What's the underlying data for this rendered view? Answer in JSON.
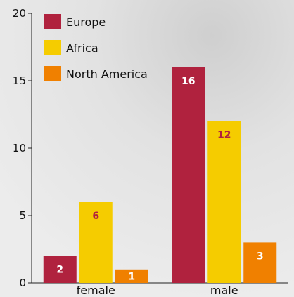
{
  "chart_data": {
    "type": "bar",
    "categories": [
      "female",
      "male"
    ],
    "series": [
      {
        "name": "Europe",
        "values": [
          2,
          16
        ],
        "color": "#b0223e",
        "label_color": "#ffffff"
      },
      {
        "name": "Africa",
        "values": [
          6,
          12
        ],
        "color": "#f5cc00",
        "label_color": "#b0223e"
      },
      {
        "name": "North America",
        "values": [
          1,
          3
        ],
        "color": "#f08000",
        "label_color": "#ffffff"
      }
    ],
    "ylim": [
      0,
      20
    ],
    "yticks": [
      0,
      5,
      10,
      15,
      20
    ],
    "title": "",
    "xlabel": "",
    "ylabel": "",
    "legend_position": "top-left",
    "grid": false
  }
}
